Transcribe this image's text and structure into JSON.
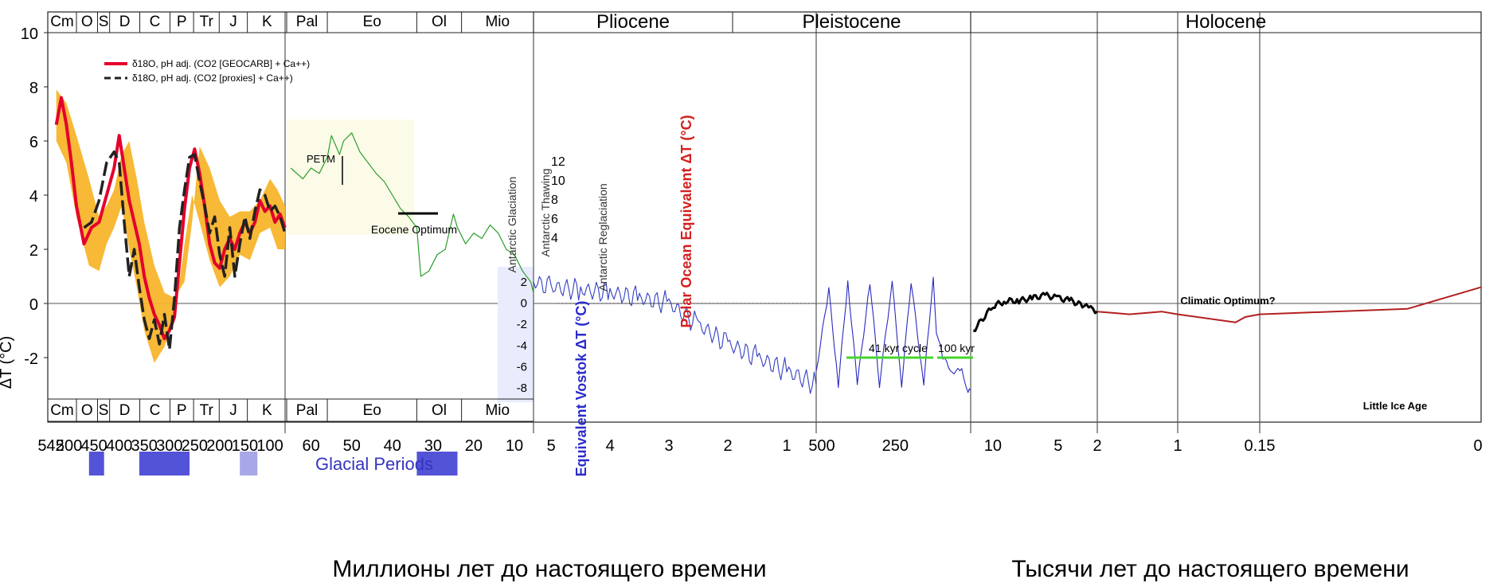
{
  "chart_data": {
    "type": "line",
    "ylabel": "ΔT (°C)",
    "ylim": [
      -4,
      10
    ],
    "yticks": [
      "10",
      "8",
      "6",
      "4",
      "2",
      "0",
      "-2"
    ],
    "xlabel_million": "Миллионы лет до настоящего времени",
    "xlabel_thousand": "Тысячи лет до настоящего времени",
    "x_ticks": {
      "panel1": [
        "542",
        "500",
        "450",
        "400",
        "350",
        "300",
        "250",
        "200",
        "150",
        "100"
      ],
      "panel2": [
        "60",
        "50",
        "40",
        "30",
        "20",
        "10"
      ],
      "panel3": [
        "5",
        "4",
        "3",
        "2",
        "1"
      ],
      "panel4": [
        "500",
        "250"
      ],
      "panel5": [
        "10",
        "5",
        "2"
      ],
      "panel6": [
        "1",
        "0.15",
        "0"
      ]
    },
    "periods_top": [
      "Cm",
      "O",
      "S",
      "D",
      "C",
      "P",
      "Tr",
      "J",
      "K",
      "Pal",
      "Eo",
      "Ol",
      "Mio",
      "Pliocene",
      "Pleistocene",
      "Holocene"
    ],
    "periods_bottom": [
      "Cm",
      "O",
      "S",
      "D",
      "C",
      "P",
      "Tr",
      "J",
      "K",
      "Pal",
      "Eo",
      "Ol",
      "Mio"
    ],
    "legend": [
      {
        "label": "δ18O, pH adj. (CO2 [GEOCARB] + Ca++)",
        "color": "#e4002b",
        "style": "solid"
      },
      {
        "label": "δ18O, pH adj. (CO2 [proxies] + Ca++)",
        "color": "#222222",
        "style": "dashed"
      }
    ],
    "annotations": {
      "petm": "PETM",
      "eocene_optimum": "Eocene Optimum",
      "antarctic_glaciation": "Antarctic Glaciation",
      "antarctic_thawing": "Antarctic Thawing",
      "antarctic_reglaciation": "Antarctic Reglaciation",
      "polar_ocean": "Polar Ocean Equivalent ΔT (°C)",
      "polar_ticks": [
        "12",
        "10",
        "8",
        "6",
        "4"
      ],
      "vostok": "Equivalent Vostok ΔT (°C)",
      "vostok_ticks": [
        "2",
        "0",
        "-2",
        "-4",
        "-6",
        "-8"
      ],
      "glacial_periods": "Glacial Periods",
      "cycle_41": "41 kyr cycle",
      "cycle_100": "100 kyr",
      "climatic_optimum": "Climatic Optimum?",
      "little_ice_age": "Little Ice Age"
    },
    "series": [
      {
        "name": "δ18O, pH adj. (CO2 [GEOCARB] + Ca++)",
        "unit_x": "Ma",
        "x": [
          525,
          515,
          505,
          495,
          485,
          470,
          455,
          440,
          425,
          410,
          400,
          390,
          380,
          370,
          360,
          350,
          340,
          330,
          320,
          310,
          300,
          290,
          280,
          270,
          260,
          250,
          240,
          230,
          220,
          210,
          200,
          190,
          180,
          170,
          160,
          150,
          140,
          130,
          120,
          110,
          100,
          90,
          80,
          70
        ],
        "y": [
          6.6,
          7.6,
          6.6,
          5.2,
          3.6,
          2.2,
          2.8,
          3.0,
          4.0,
          5.0,
          6.2,
          5.0,
          3.8,
          3.0,
          2.2,
          1.0,
          0.2,
          -0.4,
          -0.8,
          -1.3,
          -1.0,
          -0.5,
          1.5,
          3.5,
          5.0,
          5.7,
          4.8,
          3.6,
          2.2,
          1.5,
          1.3,
          2.0,
          2.4,
          2.0,
          2.6,
          3.0,
          2.6,
          3.0,
          3.8,
          3.4,
          3.6,
          3.0,
          3.3,
          2.8
        ]
      },
      {
        "name": "δ18O, pH adj. (CO2 [proxies] + Ca++)",
        "unit_x": "Ma",
        "x": [
          470,
          455,
          440,
          425,
          410,
          400,
          390,
          380,
          370,
          360,
          350,
          340,
          330,
          320,
          310,
          300,
          290,
          280,
          270,
          260,
          250,
          240,
          230,
          220,
          210,
          200,
          190,
          180,
          170,
          160,
          150,
          140,
          130,
          120,
          110,
          100,
          90,
          80,
          70
        ],
        "y": [
          2.8,
          3.0,
          3.8,
          5.2,
          5.6,
          5.2,
          3.0,
          1.0,
          2.0,
          0.6,
          -0.6,
          -1.3,
          -0.6,
          -1.5,
          -0.4,
          -1.7,
          0.2,
          2.8,
          4.2,
          5.4,
          5.5,
          4.5,
          3.6,
          2.6,
          3.2,
          1.8,
          1.0,
          2.8,
          1.0,
          2.2,
          3.2,
          2.4,
          3.4,
          4.2,
          4.0,
          3.4,
          3.6,
          3.2,
          2.6
        ]
      },
      {
        "name": "",
        "unit_x": "Ma",
        "x": [
          65,
          62,
          60,
          58,
          56,
          55,
          53,
          52,
          50,
          48,
          46,
          44,
          42,
          40,
          38,
          36,
          34,
          33,
          31,
          29,
          27,
          25,
          24,
          22,
          20,
          18,
          16,
          14,
          12,
          10,
          8,
          6,
          5.3
        ],
        "y": [
          5.0,
          4.6,
          5.0,
          4.8,
          5.4,
          6.2,
          5.5,
          6.0,
          6.3,
          5.6,
          5.2,
          4.8,
          4.5,
          4.0,
          3.5,
          3.2,
          2.8,
          1.0,
          1.2,
          1.8,
          2.0,
          3.3,
          2.8,
          2.2,
          2.6,
          2.4,
          2.9,
          2.6,
          2.0,
          1.8,
          1.2,
          0.8,
          0.4
        ]
      },
      {
        "name": "",
        "unit_x": "Ma",
        "x": [
          5.3,
          5.0,
          4.5,
          4.0,
          3.5,
          3.0,
          2.5,
          2.0,
          1.5,
          1.0,
          0.5
        ],
        "y": [
          0.8,
          0.6,
          0.5,
          0.4,
          0.2,
          0.0,
          -0.8,
          -1.5,
          -2.0,
          -2.5,
          -3.0
        ]
      },
      {
        "name": "",
        "unit_x": "ka",
        "x": [
          500,
          460,
          430,
          400,
          370,
          330,
          300,
          260,
          230,
          200,
          160,
          130,
          120,
          100,
          70,
          40,
          20,
          12
        ],
        "y": [
          -2.5,
          0.5,
          -3.0,
          0.8,
          -3.0,
          0.8,
          -3.0,
          0.8,
          -3.0,
          0.8,
          -3.0,
          1.0,
          -1.0,
          -2.0,
          -2.5,
          -2.5,
          -3.2,
          -3.2
        ]
      },
      {
        "name": "",
        "unit_x": "ka",
        "x": [
          11.5,
          10,
          9,
          8,
          7,
          6,
          5,
          4,
          3,
          2.5,
          2
        ],
        "y": [
          -1.0,
          -0.1,
          0.1,
          0.1,
          0.2,
          0.3,
          0.2,
          0.1,
          -0.1,
          -0.2,
          -0.3
        ]
      },
      {
        "name": "",
        "unit_x": "ka",
        "x": [
          2,
          1.6,
          1.2,
          1.0,
          0.6,
          0.4,
          0.3,
          0.15,
          0.05,
          0
        ],
        "y": [
          -0.3,
          -0.4,
          -0.3,
          -0.4,
          -0.6,
          -0.7,
          -0.5,
          -0.4,
          -0.2,
          0.6
        ]
      }
    ],
    "glacial_periods_ma": [
      [
        460,
        430
      ],
      [
        360,
        260
      ],
      [
        160,
        125
      ],
      [
        34,
        24
      ]
    ],
    "grid": false
  }
}
